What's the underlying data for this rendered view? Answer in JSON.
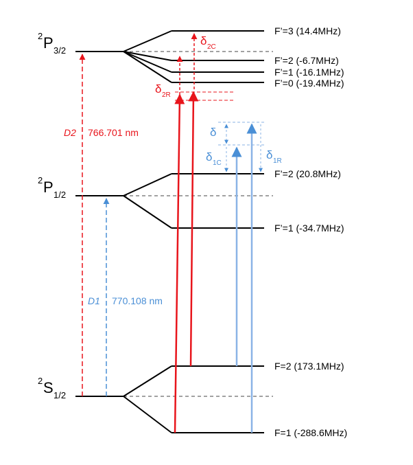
{
  "terms": {
    "p32": {
      "letter": "P",
      "sup": "2",
      "sub": "3/2"
    },
    "p12": {
      "letter": "P",
      "sup": "2",
      "sub": "1/2"
    },
    "s12": {
      "letter": "S",
      "sup": "2",
      "sub": "1/2"
    }
  },
  "levels": {
    "p32_f3": "F’=3 (14.4MHz)",
    "p32_f2": "F’=2 (-6.7MHz)",
    "p32_f1": "F’=1 (-16.1MHz)",
    "p32_f0": "F’=0 (-19.4MHz)",
    "p12_f2": "F’=2 (20.8MHz)",
    "p12_f1": "F’=1 (-34.7MHz)",
    "s12_f2": "F=2 (173.1MHz)",
    "s12_f1": "F=1 (-288.6MHz)"
  },
  "transitions": {
    "d2": {
      "name": "D2",
      "wavelength": "766.701 nm",
      "color": "#e8141b"
    },
    "d1": {
      "name": "D1",
      "wavelength": "770.108 nm",
      "color": "#4a8fd6"
    }
  },
  "detunings": {
    "d2c": {
      "symbol": "δ",
      "sub": "2C"
    },
    "d2r": {
      "symbol": "δ",
      "sub": "2R"
    },
    "d": {
      "symbol": "δ"
    },
    "d1c": {
      "symbol": "δ",
      "sub": "1C"
    },
    "d1r": {
      "symbol": "δ",
      "sub": "1R"
    }
  },
  "colors": {
    "red": "#e8141b",
    "blue": "#4a8fd6",
    "black": "#000000",
    "dashed": "#444444"
  }
}
